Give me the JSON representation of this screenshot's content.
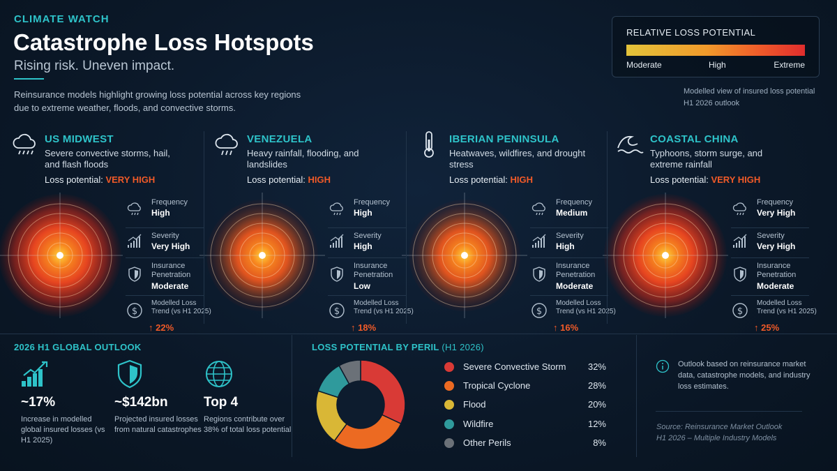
{
  "header": {
    "eyebrow": "CLIMATE WATCH",
    "title": "Catastrophe Loss Hotspots",
    "subtitle": "Rising risk. Uneven impact.",
    "intro": "Reinsurance models highlight growing loss potential across key regions due to extreme weather, floods, and convective storms."
  },
  "legend": {
    "title": "RELATIVE LOSS POTENTIAL",
    "low": "Moderate",
    "mid": "High",
    "high": "Extreme",
    "colors": [
      "#e3c33a",
      "#f19a2b",
      "#ef5a2a",
      "#e02d2d"
    ],
    "note_line1": "Modelled view of insured loss potential",
    "note_line2": "H1 2026 outlook"
  },
  "regions": [
    {
      "icon": "storm-cloud-icon",
      "name": "US MIDWEST",
      "desc": "Severe convective storms, hail, and flash floods",
      "loss_label": "Loss potential:",
      "loss_value": "VERY HIGH",
      "intensity": "very-high",
      "frequency_label": "Frequency",
      "frequency": "High",
      "severity_label": "Severity",
      "severity": "Very High",
      "penetration_label": "Insurance Penetration",
      "penetration": "Moderate",
      "trend_label": "Modelled Loss",
      "trend_sub": "Trend (vs H1 2025)",
      "trend": "↑ 22%"
    },
    {
      "icon": "rain-cloud-icon",
      "name": "VENEZUELA",
      "desc": "Heavy rainfall, flooding, and landslides",
      "loss_label": "Loss potential:",
      "loss_value": "HIGH",
      "intensity": "high",
      "frequency_label": "Frequency",
      "frequency": "High",
      "severity_label": "Severity",
      "severity": "High",
      "penetration_label": "Insurance Penetration",
      "penetration": "Low",
      "trend_label": "Modelled Loss",
      "trend_sub": "Trend (vs H1 2025)",
      "trend": "↑ 18%"
    },
    {
      "icon": "thermometer-icon",
      "name": "IBERIAN PENINSULA",
      "desc": "Heatwaves, wildfires, and drought stress",
      "loss_label": "Loss potential:",
      "loss_value": "HIGH",
      "intensity": "high",
      "frequency_label": "Frequency",
      "frequency": "Medium",
      "severity_label": "Severity",
      "severity": "High",
      "penetration_label": "Insurance Penetration",
      "penetration": "Moderate",
      "trend_label": "Modelled Loss",
      "trend_sub": "Trend (vs H1 2025)",
      "trend": "↑ 16%"
    },
    {
      "icon": "wave-icon",
      "name": "COASTAL CHINA",
      "desc": "Typhoons, storm surge, and extreme rainfall",
      "loss_label": "Loss potential:",
      "loss_value": "VERY HIGH",
      "intensity": "very-high",
      "frequency_label": "Frequency",
      "frequency": "Very High",
      "severity_label": "Severity",
      "severity": "Very High",
      "penetration_label": "Insurance Penetration",
      "penetration": "Moderate",
      "trend_label": "Modelled Loss",
      "trend_sub": "Trend (vs H1 2025)",
      "trend": "↑ 25%"
    }
  ],
  "outlook": {
    "title": "2026 H1 GLOBAL OUTLOOK",
    "kpis": [
      {
        "icon": "growth-chart-icon",
        "value": "~17%",
        "desc": "Increase in modelled global insured losses (vs H1 2025)"
      },
      {
        "icon": "shield-icon",
        "value": "~$142bn",
        "desc": "Projected insured losses from natural catastrophes"
      },
      {
        "icon": "globe-icon",
        "value": "Top 4",
        "desc": "Regions contribute over 38% of total loss potential"
      }
    ]
  },
  "chart_data": {
    "type": "pie",
    "title": "LOSS POTENTIAL BY PERIL",
    "title_suffix": "(H1 2026)",
    "categories": [
      "Severe Convective Storm",
      "Tropical Cyclone",
      "Flood",
      "Wildfire",
      "Other Perils"
    ],
    "values": [
      32,
      28,
      20,
      12,
      8
    ],
    "labels": [
      "32%",
      "28%",
      "20%",
      "12%",
      "8%"
    ],
    "colors": [
      "#d93a36",
      "#ec6a22",
      "#d9b736",
      "#2f9a9c",
      "#6b7178"
    ],
    "donut": true
  },
  "info": {
    "icon": "info-icon",
    "text": "Outlook based on reinsurance market data, catastrophe models, and industry loss estimates.",
    "source_line1": "Source: Reinsurance Market Outlook",
    "source_line2": "H1 2026 – Multiple Industry Models"
  }
}
